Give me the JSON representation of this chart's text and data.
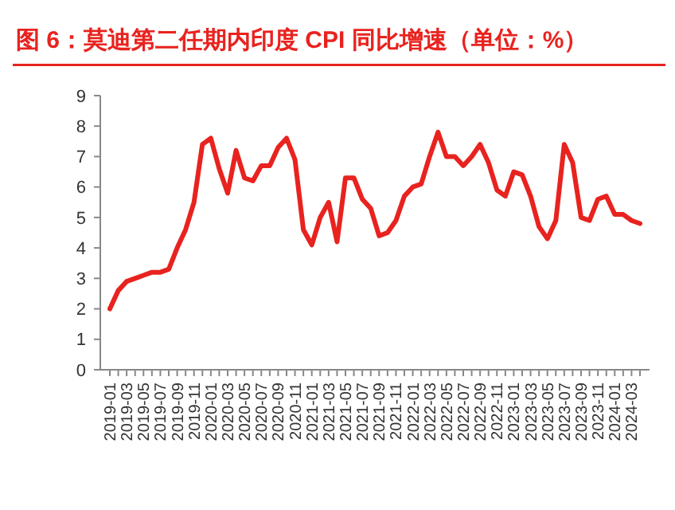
{
  "chart_data": {
    "type": "line",
    "title": "图 6：莫迪第二任期内印度 CPI 同比增速（单位：%）",
    "categories": [
      "2019-01",
      null,
      "2019-03",
      null,
      "2019-05",
      null,
      "2019-07",
      null,
      "2019-09",
      null,
      "2019-11",
      null,
      "2020-01",
      null,
      "2020-03",
      null,
      "2020-05",
      null,
      "2020-07",
      null,
      "2020-09",
      null,
      "2020-11",
      null,
      "2021-01",
      null,
      "2021-03",
      null,
      "2021-05",
      null,
      "2021-07",
      null,
      "2021-09",
      null,
      "2021-11",
      null,
      "2022-01",
      null,
      "2022-03",
      null,
      "2022-05",
      null,
      "2022-07",
      null,
      "2022-09",
      null,
      "2022-11",
      null,
      "2023-01",
      null,
      "2023-03",
      null,
      "2023-05",
      null,
      "2023-07",
      null,
      "2023-09",
      null,
      "2023-11",
      null,
      "2024-01",
      null,
      "2024-03",
      null
    ],
    "series": [
      {
        "color": "#e8231f",
        "values": [
          2.0,
          2.6,
          2.9,
          3.0,
          3.1,
          3.2,
          3.2,
          3.3,
          4.0,
          4.6,
          5.5,
          7.4,
          7.6,
          6.6,
          5.8,
          7.2,
          6.3,
          6.2,
          6.7,
          6.7,
          7.3,
          7.6,
          6.9,
          4.6,
          4.1,
          5.0,
          5.5,
          4.2,
          6.3,
          6.3,
          5.6,
          5.3,
          4.4,
          4.5,
          4.9,
          5.7,
          6.0,
          6.1,
          7.0,
          7.8,
          7.0,
          7.0,
          6.7,
          7.0,
          7.4,
          6.8,
          5.9,
          5.7,
          6.5,
          6.4,
          5.7,
          4.7,
          4.3,
          4.9,
          7.4,
          6.8,
          5.0,
          4.9,
          5.6,
          5.7,
          5.1,
          5.1,
          4.9,
          4.8
        ]
      }
    ],
    "ylim": [
      0,
      9
    ],
    "yticks": [
      0,
      1,
      2,
      3,
      4,
      5,
      6,
      7,
      8,
      9
    ],
    "grid": false,
    "marker": "none",
    "line_style": "solid"
  }
}
